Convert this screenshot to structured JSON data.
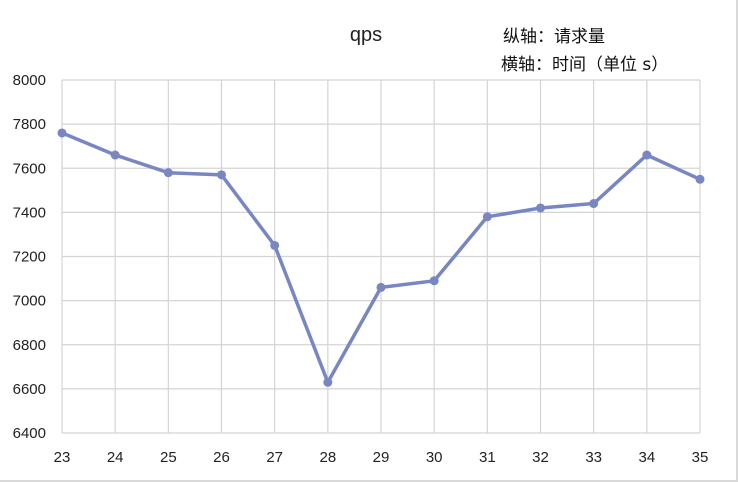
{
  "chart_data": {
    "type": "line",
    "title": "qps",
    "annotations": [
      "纵轴：请求量",
      "横轴：时间（单位 s）"
    ],
    "xlabel": "",
    "ylabel": "",
    "categories": [
      "23",
      "24",
      "25",
      "26",
      "27",
      "28",
      "29",
      "30",
      "31",
      "32",
      "33",
      "34",
      "35"
    ],
    "y_ticks": [
      "6400",
      "6600",
      "6800",
      "7000",
      "7200",
      "7400",
      "7600",
      "7800",
      "8000"
    ],
    "ylim": [
      6400,
      8000
    ],
    "grid": true,
    "legend": "none",
    "series": [
      {
        "values": [
          7760,
          7660,
          7580,
          7570,
          7250,
          6630,
          7060,
          7090,
          7380,
          7420,
          7440,
          7660,
          7550
        ],
        "color": "#7886c2"
      }
    ]
  }
}
